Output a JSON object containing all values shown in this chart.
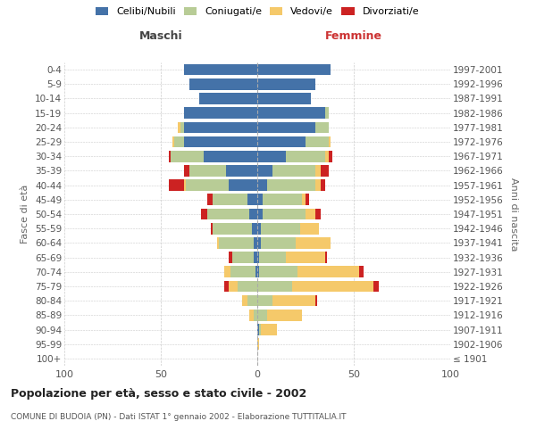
{
  "age_groups": [
    "100+",
    "95-99",
    "90-94",
    "85-89",
    "80-84",
    "75-79",
    "70-74",
    "65-69",
    "60-64",
    "55-59",
    "50-54",
    "45-49",
    "40-44",
    "35-39",
    "30-34",
    "25-29",
    "20-24",
    "15-19",
    "10-14",
    "5-9",
    "0-4"
  ],
  "birth_years": [
    "≤ 1901",
    "1902-1906",
    "1907-1911",
    "1912-1916",
    "1917-1921",
    "1922-1926",
    "1927-1931",
    "1932-1936",
    "1937-1941",
    "1942-1946",
    "1947-1951",
    "1952-1956",
    "1957-1961",
    "1962-1966",
    "1967-1971",
    "1972-1976",
    "1977-1981",
    "1982-1986",
    "1987-1991",
    "1992-1996",
    "1997-2001"
  ],
  "males_celibi": [
    0,
    0,
    0,
    0,
    0,
    0,
    1,
    2,
    2,
    3,
    4,
    5,
    15,
    16,
    28,
    38,
    38,
    38,
    30,
    35,
    38
  ],
  "males_coniugati": [
    0,
    0,
    0,
    2,
    5,
    10,
    13,
    11,
    18,
    20,
    22,
    18,
    22,
    19,
    17,
    5,
    2,
    0,
    0,
    0,
    0
  ],
  "males_vedovi": [
    0,
    0,
    0,
    2,
    3,
    5,
    3,
    0,
    1,
    0,
    0,
    0,
    1,
    0,
    0,
    1,
    1,
    0,
    0,
    0,
    0
  ],
  "males_divorziati": [
    0,
    0,
    0,
    0,
    0,
    2,
    0,
    2,
    0,
    1,
    3,
    3,
    8,
    3,
    1,
    0,
    0,
    0,
    0,
    0,
    0
  ],
  "females_nubili": [
    0,
    0,
    1,
    0,
    0,
    0,
    1,
    1,
    2,
    2,
    3,
    3,
    5,
    8,
    15,
    25,
    30,
    35,
    28,
    30,
    38
  ],
  "females_coniugate": [
    0,
    0,
    1,
    5,
    8,
    18,
    20,
    14,
    18,
    20,
    22,
    20,
    25,
    22,
    20,
    12,
    7,
    2,
    0,
    0,
    0
  ],
  "females_vedove": [
    0,
    1,
    8,
    18,
    22,
    42,
    32,
    20,
    18,
    10,
    5,
    2,
    3,
    3,
    2,
    1,
    0,
    0,
    0,
    0,
    0
  ],
  "females_divorziate": [
    0,
    0,
    0,
    0,
    1,
    3,
    2,
    1,
    0,
    0,
    3,
    2,
    2,
    4,
    2,
    0,
    0,
    0,
    0,
    0,
    0
  ],
  "color_celibi": "#4472a8",
  "color_coniugati": "#b8cc96",
  "color_vedovi": "#f5c96a",
  "color_divorziati": "#cc2222",
  "title": "Popolazione per età, sesso e stato civile - 2002",
  "subtitle": "COMUNE DI BUDOIA (PN) - Dati ISTAT 1° gennaio 2002 - Elaborazione TUTTITALIA.IT",
  "label_maschi": "Maschi",
  "label_femmine": "Femmine",
  "ylabel_left": "Fasce di età",
  "ylabel_right": "Anni di nascita",
  "xlim": 100,
  "legend_labels": [
    "Celibi/Nubili",
    "Coniugati/e",
    "Vedovi/e",
    "Divorziati/e"
  ],
  "bg_color": "#ffffff"
}
